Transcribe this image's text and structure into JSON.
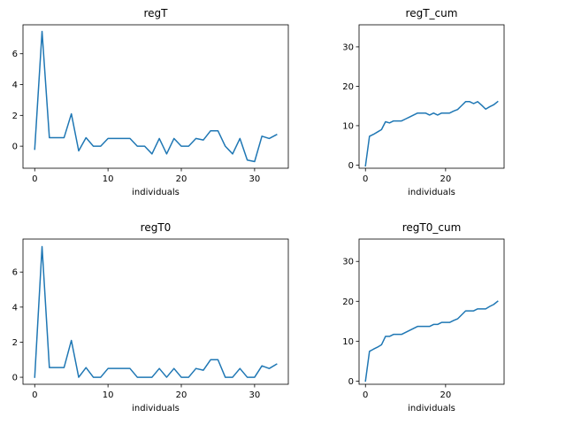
{
  "figure": {
    "background": "#ffffff",
    "line_color": "#1f77b4"
  },
  "chart_data": [
    {
      "type": "line",
      "title": "regT",
      "xlabel": "individuals",
      "ylabel": "",
      "xlim": [
        -1.6,
        34.6
      ],
      "ylim": [
        -1.43,
        7.88
      ],
      "xticks": [
        0,
        10,
        20,
        30
      ],
      "yticks": [
        0,
        2,
        4,
        6
      ],
      "grid": false,
      "series": [
        {
          "x": [
            0,
            1,
            2,
            3,
            4,
            5,
            6,
            7,
            8,
            9,
            10,
            11,
            12,
            13,
            14,
            15,
            16,
            17,
            18,
            19,
            20,
            21,
            22,
            23,
            24,
            25,
            26,
            27,
            28,
            29,
            30,
            31,
            32,
            33
          ],
          "y": [
            -0.2,
            7.45,
            0.55,
            0.55,
            0.55,
            2.1,
            -0.3,
            0.55,
            0.0,
            0.0,
            0.5,
            0.5,
            0.5,
            0.5,
            0.0,
            0.0,
            -0.5,
            0.5,
            -0.5,
            0.5,
            0.0,
            0.0,
            0.5,
            0.4,
            1.0,
            1.0,
            0.0,
            -0.5,
            0.5,
            -0.9,
            -1.0,
            0.65,
            0.5,
            0.75
          ]
        }
      ]
    },
    {
      "type": "line",
      "title": "regT_cum",
      "xlabel": "individuals",
      "ylabel": "",
      "xlim": [
        -1.6,
        34.6
      ],
      "ylim": [
        -0.8,
        35.6
      ],
      "xticks": [
        0,
        20
      ],
      "yticks": [
        0,
        10,
        20,
        30
      ],
      "grid": false,
      "series": [
        {
          "x": [
            0,
            1,
            2,
            3,
            4,
            5,
            6,
            7,
            8,
            9,
            10,
            11,
            12,
            13,
            14,
            15,
            16,
            17,
            18,
            19,
            20,
            21,
            22,
            23,
            24,
            25,
            26,
            27,
            28,
            29,
            30,
            31,
            32,
            33
          ],
          "y": [
            -0.2,
            7.3,
            7.8,
            8.4,
            9.0,
            11.0,
            10.7,
            11.2,
            11.2,
            11.2,
            11.7,
            12.2,
            12.7,
            13.2,
            13.2,
            13.2,
            12.7,
            13.2,
            12.7,
            13.2,
            13.2,
            13.2,
            13.7,
            14.1,
            15.1,
            16.1,
            16.1,
            15.6,
            16.1,
            15.2,
            14.2,
            14.8,
            15.3,
            16.1
          ]
        }
      ]
    },
    {
      "type": "line",
      "title": "regT0",
      "xlabel": "individuals",
      "ylabel": "",
      "xlim": [
        -1.6,
        34.6
      ],
      "ylim": [
        -0.4,
        7.88
      ],
      "xticks": [
        0,
        10,
        20,
        30
      ],
      "yticks": [
        0,
        2,
        4,
        6
      ],
      "grid": false,
      "series": [
        {
          "x": [
            0,
            1,
            2,
            3,
            4,
            5,
            6,
            7,
            8,
            9,
            10,
            11,
            12,
            13,
            14,
            15,
            16,
            17,
            18,
            19,
            20,
            21,
            22,
            23,
            24,
            25,
            26,
            27,
            28,
            29,
            30,
            31,
            32,
            33
          ],
          "y": [
            0.0,
            7.45,
            0.55,
            0.55,
            0.55,
            2.1,
            0.0,
            0.55,
            0.0,
            0.0,
            0.5,
            0.5,
            0.5,
            0.5,
            0.0,
            0.0,
            0.0,
            0.5,
            0.0,
            0.5,
            0.0,
            0.0,
            0.5,
            0.4,
            1.0,
            1.0,
            0.0,
            0.0,
            0.5,
            0.0,
            0.0,
            0.65,
            0.5,
            0.75
          ]
        }
      ]
    },
    {
      "type": "line",
      "title": "regT0_cum",
      "xlabel": "individuals",
      "ylabel": "",
      "xlim": [
        -1.6,
        34.6
      ],
      "ylim": [
        -0.8,
        35.6
      ],
      "xticks": [
        0,
        20
      ],
      "yticks": [
        0,
        10,
        20,
        30
      ],
      "grid": false,
      "series": [
        {
          "x": [
            0,
            1,
            2,
            3,
            4,
            5,
            6,
            7,
            8,
            9,
            10,
            11,
            12,
            13,
            14,
            15,
            16,
            17,
            18,
            19,
            20,
            21,
            22,
            23,
            24,
            25,
            26,
            27,
            28,
            29,
            30,
            31,
            32,
            33
          ],
          "y": [
            0.0,
            7.45,
            8.0,
            8.5,
            9.1,
            11.2,
            11.2,
            11.7,
            11.7,
            11.7,
            12.2,
            12.7,
            13.2,
            13.7,
            13.7,
            13.7,
            13.7,
            14.2,
            14.2,
            14.7,
            14.7,
            14.7,
            15.2,
            15.6,
            16.6,
            17.6,
            17.6,
            17.6,
            18.1,
            18.1,
            18.1,
            18.7,
            19.2,
            20.0
          ]
        }
      ]
    }
  ]
}
